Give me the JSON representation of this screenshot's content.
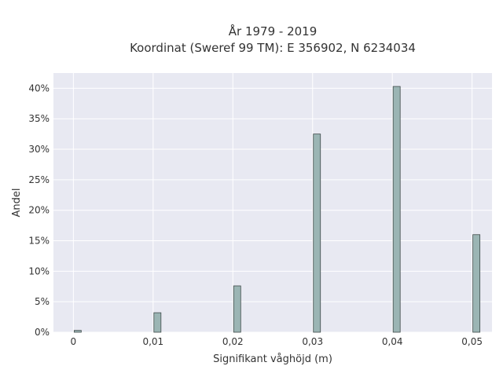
{
  "chart_data": {
    "type": "bar",
    "title_lines": [
      "År 1979 - 2019",
      "Koordinat (Sweref 99 TM): E 356902, N 6234034"
    ],
    "xlabel": "Signifikant våghöjd (m)",
    "ylabel": "Andel",
    "x": [
      0,
      0.01,
      0.02,
      0.03,
      0.04,
      0.05
    ],
    "values": [
      0.3,
      3.2,
      7.6,
      32.5,
      40.3,
      16.0
    ],
    "x_ticks": [
      0,
      0.01,
      0.02,
      0.03,
      0.04,
      0.05
    ],
    "x_tick_labels": [
      "0",
      "0,01",
      "0,02",
      "0,03",
      "0,04",
      "0,05"
    ],
    "y_ticks": [
      0,
      5,
      10,
      15,
      20,
      25,
      30,
      35,
      40
    ],
    "y_tick_labels": [
      "0%",
      "5%",
      "10%",
      "15%",
      "20%",
      "25%",
      "30%",
      "35%",
      "40%"
    ],
    "xlim": [
      -0.0025,
      0.0525
    ],
    "ylim": [
      0,
      42.5
    ],
    "grid": true,
    "bar_color": "#9bb5b4",
    "plot_background": "#e8e9f2"
  }
}
